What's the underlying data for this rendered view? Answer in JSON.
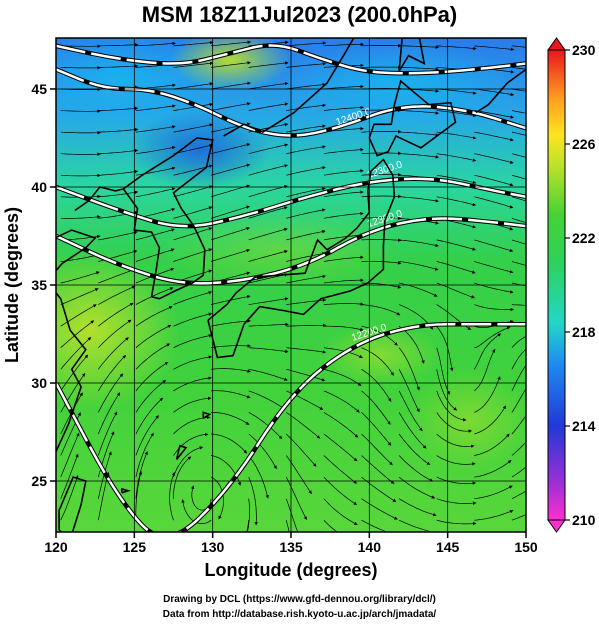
{
  "title": "MSM 18Z11Jul2023 (200.0hPa)",
  "chart_data": {
    "type": "heatmap",
    "title": "MSM 18Z11Jul2023 (200.0hPa)",
    "xlabel": "Longitude (degrees)",
    "ylabel": "Latitude  (degrees)",
    "xlim": [
      120,
      150
    ],
    "ylim": [
      22.4,
      47.6
    ],
    "x_ticks": [
      "120",
      "125",
      "130",
      "135",
      "140",
      "145",
      "150"
    ],
    "y_ticks": [
      "25",
      "30",
      "35",
      "40",
      "45"
    ],
    "grid": true,
    "colorbar": {
      "min": 210,
      "max": 230,
      "ticks": [
        "210",
        "214",
        "218",
        "222",
        "226",
        "230"
      ],
      "placement": "right"
    },
    "contours": [
      {
        "label": "12200.0",
        "lon": [
          120,
          124,
          127,
          131,
          135,
          139,
          143,
          147,
          150
        ],
        "lat": [
          30.0,
          24.0,
          21.5,
          24.5,
          29.5,
          32.0,
          33.0,
          33.0,
          33.0
        ]
      },
      {
        "label": "12300.0",
        "lon": [
          120,
          124,
          128,
          132,
          136,
          140,
          144,
          148,
          150
        ],
        "lat": [
          37.5,
          36.0,
          35.0,
          35.2,
          36.0,
          37.8,
          38.5,
          38.2,
          38.0
        ]
      },
      {
        "label": "12300.0",
        "lon": [
          120,
          124,
          128,
          132,
          136,
          140,
          144,
          148,
          150
        ],
        "lat": [
          40.0,
          38.8,
          37.8,
          38.5,
          39.5,
          40.3,
          40.5,
          39.8,
          39.5
        ]
      },
      {
        "label": "12400.0",
        "lon": [
          120,
          123,
          126,
          129,
          132,
          135,
          138,
          142,
          146,
          150
        ],
        "lat": [
          46.0,
          45.0,
          45.0,
          44.2,
          43.0,
          42.5,
          43.0,
          44.2,
          44.0,
          43.0
        ]
      },
      {
        "label": "",
        "lon": [
          120,
          124,
          128,
          131,
          134,
          137,
          140,
          144,
          148,
          150
        ],
        "lat": [
          47.2,
          46.5,
          46.2,
          46.8,
          47.4,
          46.5,
          45.8,
          45.8,
          46.1,
          46.3
        ]
      }
    ],
    "streamflow": {
      "description_hidden": true
    }
  },
  "credits": {
    "line1": "Drawing by DCL (https://www.gfd-dennou.org/library/dcl/)",
    "line2": "Data from http://database.rish.kyoto-u.ac.jp/arch/jmadata/"
  },
  "colors": {
    "deep_blue": "#0a4fd8",
    "cyan": "#22d6c8",
    "green": "#3ad24a",
    "yellow_green": "#b8e12a",
    "yellow": "#ffe41e",
    "orange": "#ff7a1e",
    "red": "#e8161e",
    "magenta": "#ff2fd1"
  }
}
